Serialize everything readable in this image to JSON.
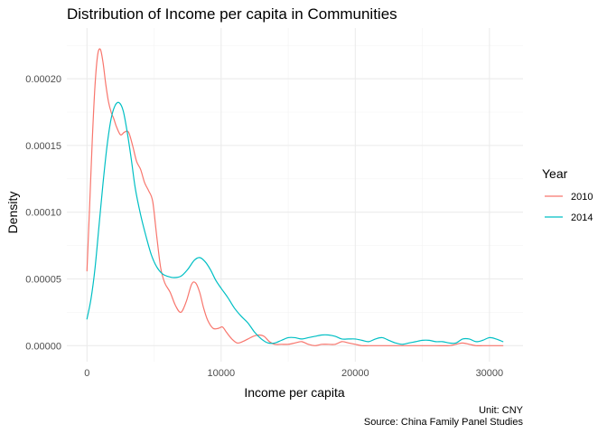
{
  "chart_data": {
    "type": "line",
    "title": "Distribution of Income per capita in Communities",
    "xlabel": "Income per capita",
    "ylabel": "Density",
    "caption": [
      "Unit: CNY",
      "Source: China Family Panel Studies"
    ],
    "xlim": [
      -1500,
      32500
    ],
    "ylim": [
      -1.2e-05,
      0.000238
    ],
    "x_ticks": [
      {
        "value": 0,
        "label": "0"
      },
      {
        "value": 10000,
        "label": "10000"
      },
      {
        "value": 20000,
        "label": "20000"
      },
      {
        "value": 30000,
        "label": "30000"
      }
    ],
    "y_ticks": [
      {
        "value": 0,
        "label": "0.00000"
      },
      {
        "value": 5e-05,
        "label": "0.00005"
      },
      {
        "value": 0.0001,
        "label": "0.00010"
      },
      {
        "value": 0.00015,
        "label": "0.00015"
      },
      {
        "value": 0.0002,
        "label": "0.00020"
      }
    ],
    "grid": true,
    "legend": {
      "title": "Year",
      "position": "right"
    },
    "series": [
      {
        "name": "2010",
        "color": "#F8766D",
        "x": [
          0,
          200,
          400,
          600,
          800,
          1000,
          1200,
          1400,
          1600,
          1800,
          2000,
          2200,
          2500,
          2800,
          3100,
          3400,
          3700,
          4000,
          4300,
          4600,
          4900,
          5200,
          5500,
          5800,
          6200,
          6600,
          7000,
          7400,
          7800,
          8100,
          8400,
          8700,
          9000,
          9400,
          9800,
          10100,
          10400,
          10800,
          11200,
          11600,
          12000,
          12400,
          12800,
          13200,
          13600,
          14000,
          14500,
          15000,
          15500,
          16000,
          16500,
          17000,
          17500,
          18000,
          18500,
          19000,
          19500,
          20000,
          20500,
          21000,
          22000,
          23000,
          24000,
          25000,
          26000,
          27000,
          27500,
          28000,
          28500,
          29000,
          29500,
          30000,
          30500,
          31000
        ],
        "y": [
          5.6e-05,
          0.000105,
          0.000155,
          0.000195,
          0.000218,
          0.000222,
          0.000212,
          0.000196,
          0.000183,
          0.000175,
          0.00017,
          0.000164,
          0.000158,
          0.00016,
          0.00016,
          0.00015,
          0.000138,
          0.000132,
          0.000122,
          0.000116,
          0.000108,
          8.2e-05,
          5.8e-05,
          4.7e-05,
          4e-05,
          3e-05,
          2.5e-05,
          3.3e-05,
          4.6e-05,
          4.7e-05,
          4e-05,
          2.8e-05,
          1.9e-05,
          1.3e-05,
          1.3e-05,
          1.4e-05,
          1e-05,
          5e-06,
          2e-06,
          3e-06,
          5e-06,
          7e-06,
          8e-06,
          7e-06,
          3e-06,
          1e-06,
          1e-06,
          1e-06,
          2e-06,
          3e-06,
          1e-06,
          0.0,
          1e-06,
          1e-06,
          1e-06,
          3e-06,
          2e-06,
          1e-06,
          0.0,
          0.0,
          0.0,
          0.0,
          0.0,
          0.0,
          0.0,
          0.0,
          1e-06,
          2e-06,
          1e-06,
          0.0,
          0.0,
          0.0,
          0.0,
          0.0
        ]
      },
      {
        "name": "2014",
        "color": "#00BFC4",
        "x": [
          0,
          300,
          600,
          900,
          1200,
          1500,
          1800,
          2100,
          2400,
          2700,
          3000,
          3300,
          3600,
          4000,
          4400,
          4800,
          5200,
          5600,
          6000,
          6500,
          7000,
          7500,
          8000,
          8400,
          8800,
          9200,
          9600,
          10000,
          10500,
          11000,
          11500,
          12000,
          12500,
          13000,
          13500,
          14000,
          14500,
          15000,
          15500,
          16000,
          16500,
          17000,
          17500,
          18000,
          18500,
          19000,
          19500,
          20000,
          20500,
          21000,
          21500,
          22000,
          22500,
          23000,
          23500,
          24000,
          24500,
          25000,
          25500,
          26000,
          26500,
          27000,
          27500,
          28000,
          28500,
          29000,
          29500,
          30000,
          30500,
          31000
        ],
        "y": [
          2e-05,
          3.5e-05,
          5.8e-05,
          9e-05,
          0.000122,
          0.00015,
          0.00017,
          0.00018,
          0.000182,
          0.000176,
          0.00016,
          0.00014,
          0.000118,
          9.8e-05,
          8.2e-05,
          6.8e-05,
          5.9e-05,
          5.4e-05,
          5.2e-05,
          5.1e-05,
          5.2e-05,
          5.7e-05,
          6.4e-05,
          6.6e-05,
          6.3e-05,
          5.7e-05,
          4.9e-05,
          4.3e-05,
          3.6e-05,
          2.8e-05,
          2.2e-05,
          1.7e-05,
          1e-05,
          5e-06,
          2e-06,
          2e-06,
          4e-06,
          6e-06,
          6e-06,
          5e-06,
          6e-06,
          7e-06,
          8e-06,
          8e-06,
          7e-06,
          5e-06,
          5e-06,
          5e-06,
          4e-06,
          3e-06,
          5e-06,
          6e-06,
          4e-06,
          2e-06,
          1e-06,
          2e-06,
          3e-06,
          4e-06,
          4e-06,
          3e-06,
          3e-06,
          2e-06,
          2e-06,
          5e-06,
          5e-06,
          3e-06,
          4e-06,
          6e-06,
          5e-06,
          3e-06
        ]
      }
    ]
  }
}
